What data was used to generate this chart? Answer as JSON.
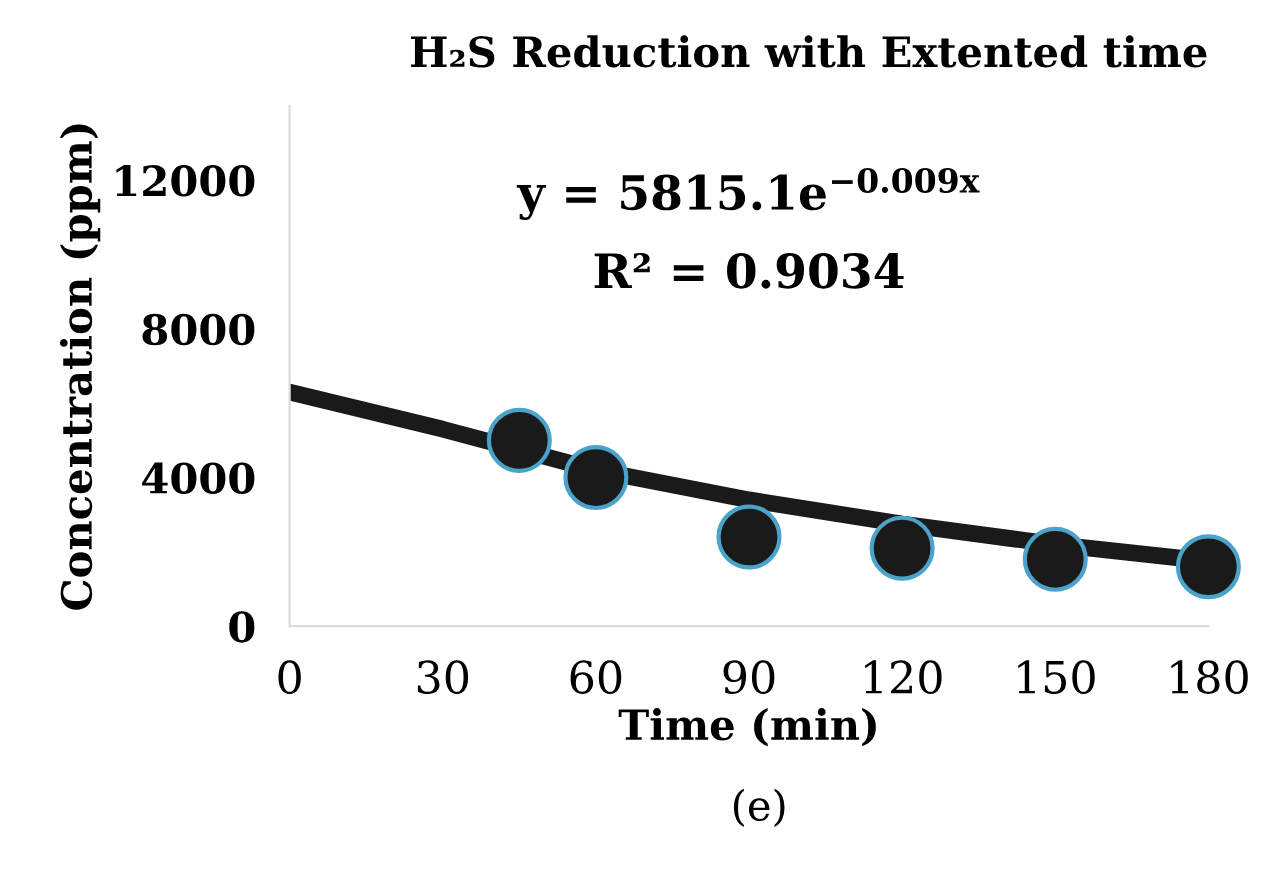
{
  "chart_data": {
    "type": "scatter",
    "title": "H₂S Reduction with Extented time",
    "xlabel": "Time (min)",
    "ylabel": "Concentration (ppm)",
    "annotations": [
      "y = 5815.1e$^{−0.009x}$",
      "R² = 0.9034",
      "(e)"
    ],
    "series": [
      {
        "color": "#1a1a1a",
        "x": [
          45,
          60,
          90,
          120,
          150,
          180
        ],
        "values": [
          5000,
          4000,
          2400,
          2100,
          1800,
          1600
        ]
      },
      {
        "type": "line",
        "color": "#1a1a1a",
        "x": [
          0,
          30,
          60,
          90,
          120,
          150,
          180
        ],
        "values": [
          6300,
          5300,
          4200,
          3400,
          2750,
          2200,
          1750
        ]
      }
    ],
    "xlim": [
      0,
      180
    ],
    "xticks": [
      0,
      30,
      60,
      90,
      120,
      150,
      180
    ],
    "ylim": [
      0,
      14000
    ],
    "yticks": [
      0,
      4000,
      8000,
      12000
    ],
    "grid": false,
    "legend": false
  }
}
